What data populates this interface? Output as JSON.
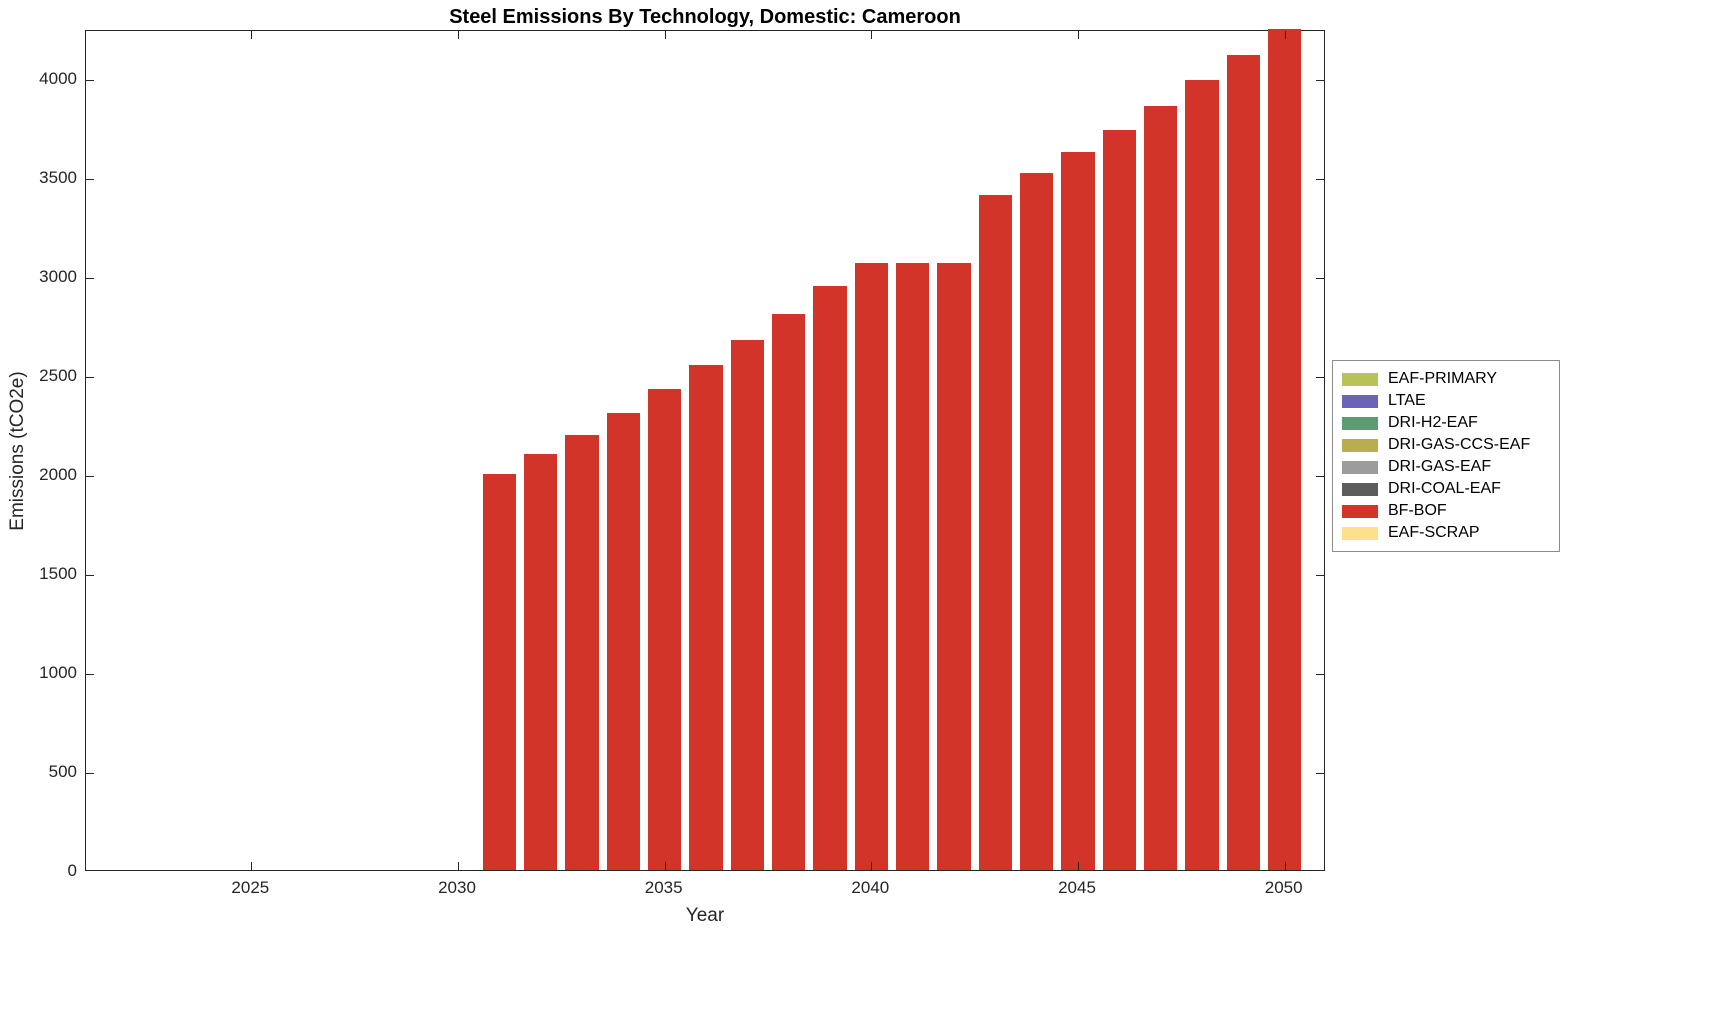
{
  "figure": {
    "title": "Steel Emissions By Technology, Domestic: Cameroon",
    "xlabel": "Year",
    "ylabel": "Emissions (tCO2e)"
  },
  "chart_data": {
    "type": "bar",
    "title": "Steel Emissions By Technology, Domestic: Cameroon",
    "xlabel": "Year",
    "ylabel": "Emissions (tCO2e)",
    "xlim": [
      2021,
      2051
    ],
    "ylim": [
      0,
      4250
    ],
    "xticks": [
      2025,
      2030,
      2035,
      2040,
      2045,
      2050
    ],
    "yticks": [
      0,
      500,
      1000,
      1500,
      2000,
      2500,
      3000,
      3500,
      4000
    ],
    "grid": false,
    "legend_position": "right-outside",
    "bar_width_years": 0.8,
    "series": [
      {
        "name": "BF-BOF",
        "color": "#d2342a",
        "x": [
          2031,
          2032,
          2033,
          2034,
          2035,
          2036,
          2037,
          2038,
          2039,
          2040,
          2041,
          2042,
          2043,
          2044,
          2045,
          2046,
          2047,
          2048,
          2049,
          2050
        ],
        "values": [
          2000,
          2100,
          2200,
          2310,
          2430,
          2550,
          2680,
          2810,
          2950,
          3070,
          3070,
          3070,
          3410,
          3520,
          3630,
          3740,
          3860,
          3990,
          4120,
          4260
        ]
      }
    ],
    "legend": {
      "entries": [
        {
          "label": "EAF-PRIMARY",
          "color": "#b8c255"
        },
        {
          "label": "LTAE",
          "color": "#6a63b8"
        },
        {
          "label": "DRI-H2-EAF",
          "color": "#5f9b72"
        },
        {
          "label": "DRI-GAS-CCS-EAF",
          "color": "#b9ad4e"
        },
        {
          "label": "DRI-GAS-EAF",
          "color": "#9c9c9c"
        },
        {
          "label": "DRI-COAL-EAF",
          "color": "#5c5c5c"
        },
        {
          "label": "BF-BOF",
          "color": "#d2342a"
        },
        {
          "label": "EAF-SCRAP",
          "color": "#ffe08a"
        }
      ]
    }
  }
}
